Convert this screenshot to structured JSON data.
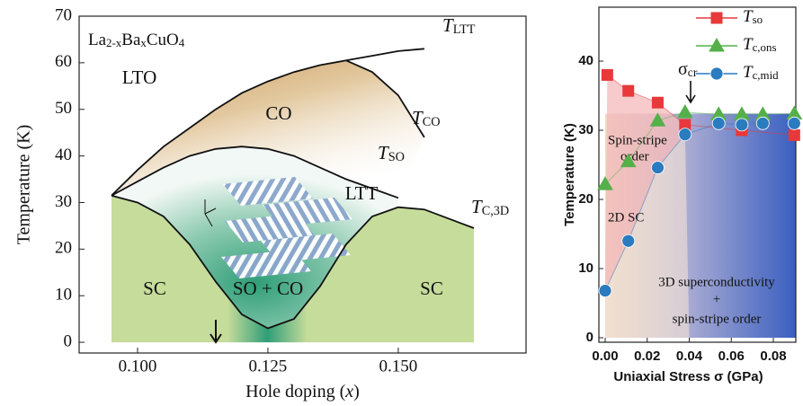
{
  "chart_data": [
    {
      "type": "line",
      "title": [
        "La",
        "2-x",
        "Ba",
        "x",
        "CuO",
        "4"
      ],
      "x_label": [
        "Hole doping (",
        "x",
        ")"
      ],
      "y_label": "Temperature (K)",
      "xlim": [
        0.0888,
        0.1745
      ],
      "ylim": [
        -2.3,
        70
      ],
      "xticks": [
        {
          "value": 0.1,
          "label": "0.100"
        },
        {
          "value": 0.125,
          "label": "0.125"
        },
        {
          "value": 0.15,
          "label": "0.150"
        }
      ],
      "yticks": [
        0,
        10,
        20,
        30,
        40,
        50,
        60,
        70
      ],
      "annotations": [
        "LTO",
        "CO",
        "LTT",
        "SC",
        "SO + CO",
        "SC"
      ],
      "series": [
        {
          "name": [
            "T",
            "LTT"
          ],
          "color": "#111111",
          "x": [
            0.095,
            0.1,
            0.105,
            0.11,
            0.115,
            0.12,
            0.125,
            0.13,
            0.135,
            0.14,
            0.145,
            0.15,
            0.155
          ],
          "values": [
            31.5,
            37,
            42,
            46,
            50,
            53.5,
            56,
            58,
            59.5,
            60.5,
            61.5,
            62.5,
            63
          ]
        },
        {
          "name": [
            "T",
            "CO"
          ],
          "color": "#111111",
          "x": [
            0.14,
            0.145,
            0.15,
            0.155
          ],
          "values": [
            60.5,
            58,
            53,
            44
          ]
        },
        {
          "name": [
            "T",
            "SO"
          ],
          "color": "#111111",
          "x": [
            0.095,
            0.1,
            0.105,
            0.11,
            0.115,
            0.12,
            0.125,
            0.13,
            0.135,
            0.14,
            0.145,
            0.15
          ],
          "values": [
            31.5,
            34.5,
            37.5,
            40,
            41.5,
            42,
            41.5,
            40,
            37.5,
            35,
            33,
            31
          ]
        },
        {
          "name": [
            "T",
            "C,3D"
          ],
          "color": "#111111",
          "x": [
            0.095,
            0.1,
            0.105,
            0.11,
            0.115,
            0.12,
            0.125,
            0.13,
            0.135,
            0.14,
            0.145,
            0.15,
            0.155,
            0.1645
          ],
          "values": [
            31.5,
            30,
            27,
            21,
            13,
            6,
            3,
            5,
            12,
            21,
            27,
            29,
            28.5,
            24.5
          ]
        }
      ]
    },
    {
      "type": "scatter",
      "x_label": "Uniaxial Stress σ (GPa)",
      "y_label": "Temperature (K)",
      "xlim": [
        -0.003,
        0.0907
      ],
      "ylim": [
        -0.65,
        47.8
      ],
      "xticks": [
        {
          "value": 0,
          "label": "0.00"
        },
        {
          "value": 0.02,
          "label": "0.02"
        },
        {
          "value": 0.04,
          "label": "0.04"
        },
        {
          "value": 0.06,
          "label": "0.06"
        },
        {
          "value": 0.08,
          "label": "0.08"
        }
      ],
      "yticks": [
        0,
        10,
        20,
        30,
        40
      ],
      "marker_annotation": [
        "σ",
        "cr"
      ],
      "annotations": [
        "Spin-stripe",
        "order",
        "2D SC",
        "3D superconductivity",
        "+",
        "spin-stripe order"
      ],
      "legend": "upper right",
      "series": [
        {
          "name": [
            "T",
            "so"
          ],
          "color": "#e8383a",
          "marker": "square",
          "x": [
            0.001,
            0.011,
            0.025,
            0.038,
            0.065,
            0.09
          ],
          "values": [
            38,
            35.7,
            34,
            30.8,
            30,
            29.3
          ]
        },
        {
          "name": [
            "T",
            "c,ons"
          ],
          "color": "#55b04a",
          "marker": "triangle",
          "x": [
            0,
            0.011,
            0.025,
            0.038,
            0.054,
            0.065,
            0.075,
            0.09
          ],
          "values": [
            22.2,
            25.5,
            31.4,
            32.6,
            32.3,
            32.3,
            32.3,
            32.4
          ]
        },
        {
          "name": [
            "T",
            "c,mid"
          ],
          "color": "#2b7bbf",
          "marker": "circle",
          "x": [
            0,
            0.011,
            0.025,
            0.038,
            0.054,
            0.065,
            0.075,
            0.09
          ],
          "values": [
            6.8,
            14,
            24.6,
            29.4,
            31,
            30.8,
            31,
            31
          ]
        }
      ]
    }
  ]
}
